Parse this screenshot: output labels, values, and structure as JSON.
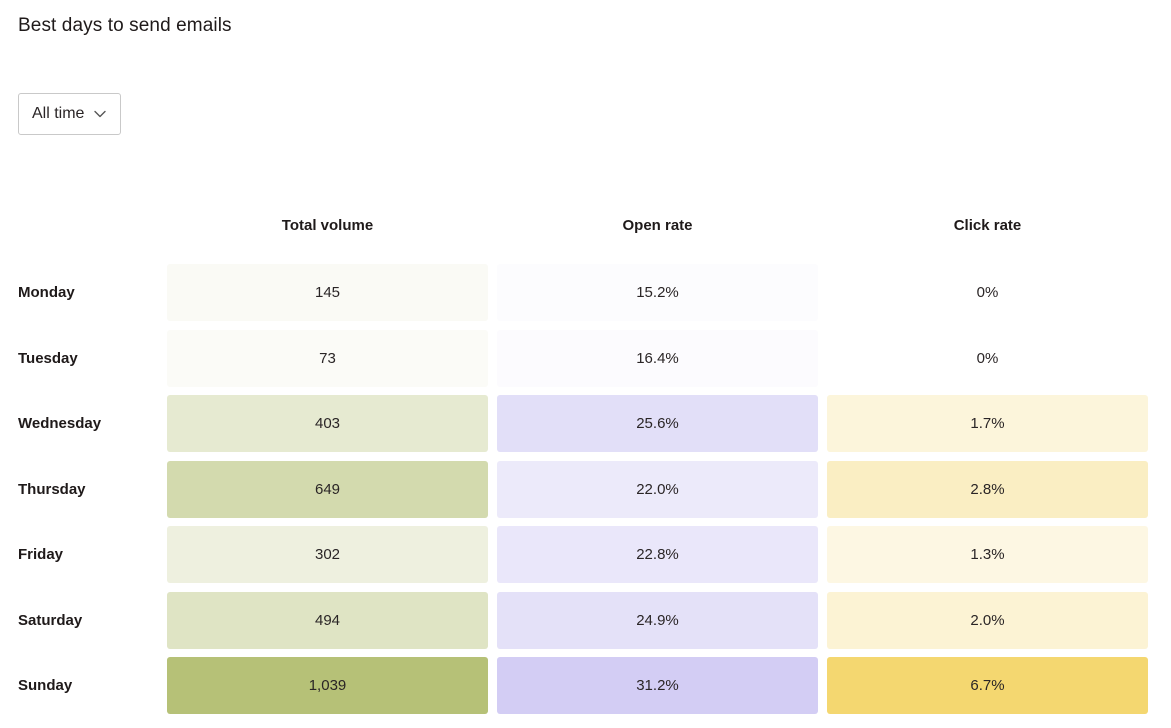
{
  "title": "Best days to send emails",
  "filter": {
    "selected": "All time",
    "icon": "chevron-down-icon"
  },
  "colors": {
    "volume": "#b6c177",
    "open": "#d3cdf4",
    "click": "#f4d770"
  },
  "chart_data": {
    "type": "heatmap",
    "columns": [
      "Total volume",
      "Open rate",
      "Click rate"
    ],
    "rows": [
      "Monday",
      "Tuesday",
      "Wednesday",
      "Thursday",
      "Friday",
      "Saturday",
      "Sunday"
    ],
    "values": {
      "total_volume": [
        145,
        73,
        403,
        649,
        302,
        494,
        1039
      ],
      "open_rate": [
        15.2,
        16.4,
        25.6,
        22.0,
        22.8,
        24.9,
        31.2
      ],
      "click_rate": [
        0,
        0,
        1.7,
        2.8,
        1.3,
        2.0,
        6.7
      ]
    },
    "labels": {
      "total_volume": [
        "145",
        "73",
        "403",
        "649",
        "302",
        "494",
        "1,039"
      ],
      "open_rate": [
        "15.2%",
        "16.4%",
        "25.6%",
        "22.0%",
        "22.8%",
        "24.9%",
        "31.2%"
      ],
      "click_rate": [
        "0%",
        "0%",
        "1.7%",
        "2.8%",
        "1.3%",
        "2.0%",
        "6.7%"
      ]
    }
  }
}
